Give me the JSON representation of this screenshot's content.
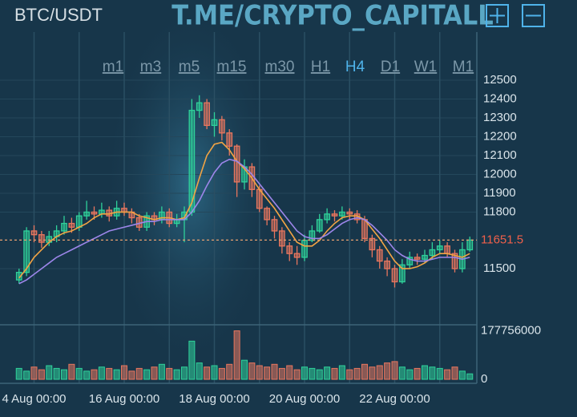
{
  "header": {
    "symbol": "BTC/USDT",
    "watermark": "T.ME/CRYPTO_CAPITALL"
  },
  "timeframes": [
    "m1",
    "m3",
    "m5",
    "m15",
    "m30",
    "H1",
    "H4",
    "D1",
    "W1",
    "M1"
  ],
  "selected_timeframe": 6,
  "chart_data": {
    "type": "candlestick",
    "categories": [
      null,
      null,
      "4 Aug 00:00",
      null,
      null,
      null,
      null,
      null,
      null,
      null,
      null,
      null,
      null,
      null,
      "16 Aug 00:00",
      null,
      null,
      null,
      null,
      null,
      null,
      null,
      null,
      null,
      null,
      null,
      "18 Aug 00:00",
      null,
      null,
      null,
      null,
      null,
      null,
      null,
      null,
      null,
      null,
      null,
      "20 Aug 00:00",
      null,
      null,
      null,
      null,
      null,
      null,
      null,
      null,
      null,
      null,
      null,
      "22 Aug 00:00",
      null,
      null,
      null,
      null,
      null,
      null,
      null,
      null,
      null,
      null
    ],
    "open": [
      11440,
      11480,
      11700,
      11680,
      11640,
      11670,
      11700,
      11740,
      11720,
      11780,
      11800,
      11790,
      11810,
      11780,
      11820,
      11800,
      11770,
      11720,
      11780,
      11760,
      11800,
      11740,
      11760,
      11800,
      12340,
      12380,
      12260,
      12290,
      12220,
      12150,
      11960,
      12040,
      11920,
      11820,
      11760,
      11700,
      11620,
      11580,
      11560,
      11650,
      11700,
      11760,
      11790,
      11780,
      11800,
      11790,
      11760,
      11660,
      11600,
      11540,
      11500,
      11430,
      11520,
      11560,
      11550,
      11570,
      11600,
      11620,
      11580,
      11500,
      11600
    ],
    "high": [
      11500,
      11720,
      11730,
      11700,
      11700,
      11730,
      11780,
      11770,
      11800,
      11860,
      11830,
      11850,
      11830,
      11860,
      11850,
      11820,
      11790,
      11800,
      11800,
      11830,
      11820,
      11790,
      11830,
      12400,
      12420,
      12400,
      12330,
      12310,
      12240,
      12160,
      12080,
      12060,
      11940,
      11830,
      11780,
      11720,
      11640,
      11620,
      11680,
      11730,
      11790,
      11820,
      11810,
      11830,
      11820,
      11810,
      11780,
      11680,
      11620,
      11560,
      11520,
      11550,
      11590,
      11580,
      11600,
      11640,
      11650,
      11640,
      11600,
      11640,
      11670
    ],
    "low": [
      11420,
      11460,
      11640,
      11610,
      11620,
      11640,
      11680,
      11690,
      11700,
      11760,
      11760,
      11770,
      11750,
      11760,
      11780,
      11740,
      11700,
      11700,
      11730,
      11740,
      11720,
      11720,
      11640,
      11780,
      12300,
      12240,
      12200,
      12180,
      12100,
      11880,
      11920,
      11880,
      11800,
      11730,
      11660,
      11580,
      11540,
      11520,
      11540,
      11640,
      11690,
      11740,
      11750,
      11760,
      11760,
      11740,
      11640,
      11560,
      11500,
      11460,
      11400,
      11420,
      11500,
      11520,
      11530,
      11550,
      11580,
      11560,
      11480,
      11480,
      11590
    ],
    "close": [
      11480,
      11700,
      11680,
      11640,
      11670,
      11700,
      11740,
      11720,
      11780,
      11800,
      11790,
      11810,
      11780,
      11820,
      11800,
      11770,
      11720,
      11780,
      11760,
      11800,
      11740,
      11760,
      11800,
      12340,
      12380,
      12260,
      12290,
      12220,
      12150,
      11960,
      12040,
      11920,
      11820,
      11760,
      11700,
      11620,
      11580,
      11560,
      11650,
      11700,
      11760,
      11790,
      11780,
      11800,
      11790,
      11760,
      11660,
      11600,
      11540,
      11500,
      11430,
      11520,
      11560,
      11550,
      11570,
      11600,
      11620,
      11580,
      11500,
      11600,
      11651.5
    ],
    "up_color": "#2fd19a",
    "down_color": "#e8765e",
    "ylim": [
      11202,
      12734
    ],
    "yticks": [
      11500,
      11800,
      11900,
      12000,
      12100,
      12200,
      12300,
      12400,
      12500
    ],
    "last_price": 11651.5,
    "moving_averages": [
      {
        "color": "#f2a444",
        "values": [
          11450,
          11500,
          11560,
          11600,
          11640,
          11670,
          11690,
          11700,
          11720,
          11740,
          11770,
          11790,
          11790,
          11800,
          11800,
          11800,
          11780,
          11770,
          11760,
          11770,
          11770,
          11760,
          11770,
          11850,
          11980,
          12100,
          12160,
          12170,
          12130,
          12070,
          12030,
          11980,
          11920,
          11870,
          11820,
          11760,
          11700,
          11640,
          11620,
          11620,
          11650,
          11700,
          11740,
          11770,
          11780,
          11780,
          11760,
          11710,
          11660,
          11600,
          11540,
          11500,
          11500,
          11510,
          11530,
          11560,
          11580,
          11580,
          11570,
          11560,
          11580
        ]
      },
      {
        "color": "#9d86ea",
        "values": [
          11420,
          11440,
          11470,
          11500,
          11530,
          11560,
          11580,
          11600,
          11620,
          11640,
          11660,
          11680,
          11700,
          11710,
          11720,
          11730,
          11740,
          11750,
          11750,
          11760,
          11760,
          11760,
          11760,
          11800,
          11860,
          11940,
          12010,
          12060,
          12080,
          12070,
          12040,
          12000,
          11950,
          11900,
          11850,
          11800,
          11750,
          11700,
          11670,
          11660,
          11660,
          11680,
          11710,
          11740,
          11760,
          11770,
          11760,
          11730,
          11690,
          11650,
          11600,
          11570,
          11550,
          11540,
          11540,
          11550,
          11560,
          11560,
          11560,
          11550,
          11560
        ]
      }
    ],
    "volume": {
      "values": [
        40000000,
        30000000,
        45000000,
        35000000,
        50000000,
        40000000,
        35000000,
        55000000,
        40000000,
        30000000,
        35000000,
        45000000,
        40000000,
        35000000,
        50000000,
        30000000,
        40000000,
        35000000,
        45000000,
        55000000,
        40000000,
        35000000,
        45000000,
        140000000,
        60000000,
        45000000,
        50000000,
        40000000,
        55000000,
        177756000,
        70000000,
        60000000,
        50000000,
        45000000,
        55000000,
        40000000,
        50000000,
        35000000,
        45000000,
        40000000,
        35000000,
        45000000,
        40000000,
        50000000,
        35000000,
        40000000,
        55000000,
        45000000,
        50000000,
        60000000,
        65000000,
        45000000,
        35000000,
        40000000,
        50000000,
        45000000,
        40000000,
        35000000,
        45000000,
        30000000,
        20000000
      ],
      "ylim": [
        0,
        200000000
      ],
      "yticks": [
        0,
        177756000
      ]
    },
    "grid": true
  }
}
